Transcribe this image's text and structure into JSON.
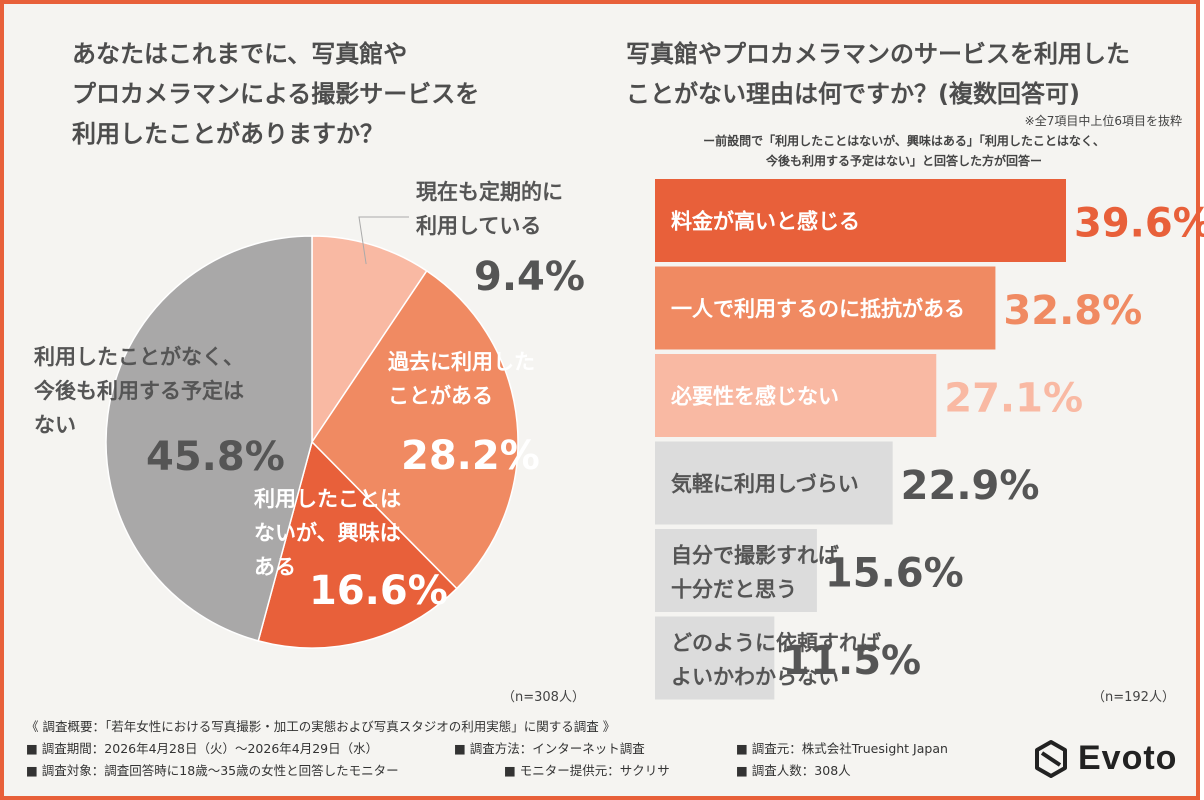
{
  "left_title": "あなたはこれまでに、写真館や\nプロカメラマンによる撮影サービスを\n利用したことがありますか？",
  "right_title": "写真館やプロカメラマンのサービスを利用した\nことがない理由は何ですか？(複数回答可)",
  "right_note": "※全7項目中上位6項目を抜粋",
  "right_subtitle": "ー前設問で「利用したことはないが、興味はある」「利用したことはなく、\n今後も利用する予定はない」と回答した方が回答ー",
  "chart_data": [
    {
      "type": "pie",
      "title": "あなたはこれまでに、写真館やプロカメラマンによる撮影サービスを利用したことがありますか？",
      "unit": "%",
      "n": "（n=308人）",
      "slices": [
        {
          "label": "現在も定期的に利用している",
          "value": 9.4,
          "value_label": "9.4%",
          "color": "#f9b9a3"
        },
        {
          "label": "過去に利用したことがある",
          "value": 28.2,
          "value_label": "28.2%",
          "color": "#f08a62"
        },
        {
          "label": "利用したことはないが、興味はある",
          "value": 16.6,
          "value_label": "16.6%",
          "color": "#e8603a"
        },
        {
          "label": "利用したことがなく、今後も利用する予定はない",
          "value": 45.8,
          "value_label": "45.8%",
          "color": "#a9a8a8"
        }
      ]
    },
    {
      "type": "bar",
      "orientation": "horizontal",
      "title": "写真館やプロカメラマンのサービスを利用したことがない理由は何ですか？(複数回答可)",
      "unit": "%",
      "n": "（n=192人）",
      "xlim": [
        0,
        39.6
      ],
      "categories": [
        "料金が高いと感じる",
        "一人で利用するのに抵抗がある",
        "必要性を感じない",
        "気軽に利用しづらい",
        "自分で撮影すれば十分だと思う",
        "どのように依頼すればよいかわからない"
      ],
      "values": [
        39.6,
        32.8,
        27.1,
        22.9,
        15.6,
        11.5
      ],
      "value_labels": [
        "39.6%",
        "32.8%",
        "27.1%",
        "22.9%",
        "15.6%",
        "11.5%"
      ],
      "colors": [
        "#e8603a",
        "#f08a62",
        "#f9b9a3",
        "#dcdcdc",
        "#dcdcdc",
        "#dcdcdc"
      ]
    }
  ],
  "footer": {
    "summary": "《 調査概要：「若年女性における写真撮影・加工の実態および写真スタジオの利用実態」に関する調査 》",
    "period": "■ 調査期間：2026年4月28日（火）〜2026年4月29日（水）",
    "method": "■ 調査方法：インターネット調査",
    "organizer": "■ 調査元：株式会社Truesight Japan",
    "target": "■ 調査対象：調査回答時に18歳〜35歳の女性と回答したモニター",
    "provider": "■ モニター提供元：サクリサ",
    "count": "■ 調査人数：308人"
  },
  "logo": {
    "text": "Evoto",
    "icon": "evoto-logo-icon"
  }
}
